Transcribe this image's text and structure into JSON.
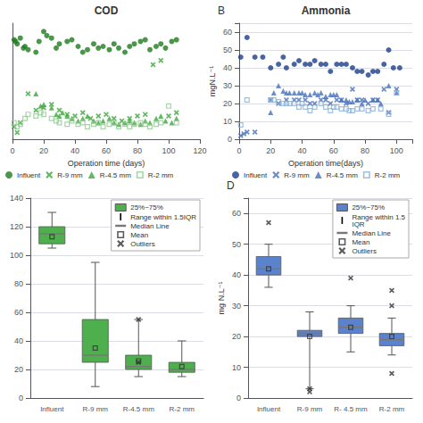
{
  "chart_data": [
    {
      "type": "scatter",
      "title": "COD",
      "xlabel": "Operation time (days)",
      "xlim": [
        0,
        120
      ],
      "xticks": [
        0,
        20,
        40,
        60,
        80,
        100,
        120
      ],
      "ylim": [
        0,
        140
      ],
      "tick_labels": "x",
      "grid": false,
      "legend": "below",
      "series": [
        {
          "name": "Influent",
          "color": "#1e7c1e",
          "marker": "circle",
          "x": [
            1,
            2,
            3,
            5,
            7,
            8,
            10,
            15,
            17,
            20,
            22,
            25,
            28,
            30,
            35,
            38,
            42,
            45,
            48,
            52,
            55,
            58,
            62,
            65,
            68,
            72,
            75,
            78,
            82,
            85,
            88,
            92,
            95,
            98,
            102,
            105
          ],
          "values": [
            120,
            118,
            115,
            122,
            110,
            112,
            108,
            105,
            118,
            130,
            125,
            122,
            110,
            115,
            118,
            120,
            112,
            105,
            108,
            115,
            110,
            112,
            108,
            115,
            110,
            105,
            112,
            115,
            118,
            120,
            108,
            112,
            115,
            110,
            118,
            120
          ]
        },
        {
          "name": "R-9 mm",
          "color": "#3da63d",
          "marker": "x",
          "x": [
            1,
            3,
            5,
            10,
            15,
            20,
            25,
            30,
            35,
            40,
            45,
            50,
            55,
            60,
            65,
            70,
            75,
            80,
            85,
            90,
            95,
            100,
            105
          ],
          "values": [
            15,
            8,
            20,
            55,
            35,
            38,
            42,
            35,
            30,
            28,
            32,
            25,
            28,
            30,
            25,
            22,
            25,
            28,
            30,
            90,
            95,
            28,
            32
          ]
        },
        {
          "name": "R-4.5 mm",
          "color": "#3da63d",
          "marker": "triangle",
          "x": [
            15,
            18,
            20,
            25,
            28,
            30,
            32,
            35,
            38,
            42,
            45,
            48,
            52,
            55,
            58,
            62,
            65,
            68,
            72,
            75,
            78,
            82,
            85,
            88,
            92,
            95,
            98,
            102,
            105
          ],
          "values": [
            55,
            40,
            42,
            38,
            30,
            28,
            32,
            28,
            25,
            22,
            25,
            28,
            22,
            20,
            22,
            25,
            20,
            18,
            20,
            22,
            20,
            18,
            22,
            20,
            25,
            28,
            22,
            20,
            25
          ]
        },
        {
          "name": "R-2 mm",
          "color": "#90cc90",
          "marker": "open_square",
          "x": [
            1,
            3,
            5,
            8,
            10,
            15,
            18,
            20,
            25,
            28,
            30,
            35,
            38,
            42,
            45,
            48,
            52,
            55,
            58,
            62,
            65,
            68,
            72,
            75,
            78,
            82,
            85,
            88,
            92,
            95,
            100,
            105
          ],
          "values": [
            20,
            15,
            18,
            25,
            30,
            28,
            32,
            30,
            25,
            22,
            20,
            18,
            22,
            18,
            20,
            15,
            18,
            20,
            15,
            18,
            20,
            15,
            18,
            15,
            18,
            20,
            18,
            15,
            18,
            20,
            40,
            20
          ]
        }
      ]
    },
    {
      "type": "scatter",
      "title": "Ammonia",
      "xlabel": "Operation time(days)",
      "ylabel": "mgN.L⁻¹",
      "xlim": [
        0,
        110
      ],
      "xticks": [
        0,
        20,
        40,
        60,
        80,
        100
      ],
      "ylim": [
        0,
        65
      ],
      "yticks": [
        0,
        10,
        20,
        30,
        40,
        50,
        60
      ],
      "grid": true,
      "legend": "below",
      "annotations": [
        "B"
      ],
      "series": [
        {
          "name": "Influent",
          "color": "#1c3d8c",
          "marker": "circle",
          "x": [
            1,
            5,
            10,
            15,
            20,
            25,
            28,
            30,
            35,
            38,
            42,
            45,
            48,
            52,
            55,
            58,
            62,
            65,
            68,
            72,
            75,
            78,
            82,
            85,
            88,
            92,
            95,
            98,
            102
          ],
          "values": [
            46,
            57,
            46,
            46,
            40,
            42,
            46,
            40,
            42,
            44,
            42,
            42,
            44,
            42,
            42,
            38,
            42,
            42,
            42,
            40,
            38,
            38,
            36,
            38,
            38,
            42,
            50,
            40,
            40
          ]
        },
        {
          "name": "R-9 mm",
          "color": "#4a70b8",
          "marker": "x",
          "x": [
            1,
            3,
            5,
            10,
            20,
            25,
            30,
            35,
            38,
            42,
            45,
            48,
            52,
            55,
            58,
            62,
            65,
            68,
            72,
            75,
            78,
            82,
            85,
            88,
            92,
            95,
            100
          ],
          "values": [
            2,
            3,
            4,
            4,
            22,
            20,
            22,
            22,
            22,
            22,
            20,
            20,
            22,
            22,
            20,
            22,
            22,
            20,
            28,
            22,
            22,
            20,
            22,
            22,
            28,
            15,
            28
          ]
        },
        {
          "name": "R-4.5 mm",
          "color": "#4a70b8",
          "marker": "triangle",
          "x": [
            20,
            22,
            25,
            28,
            30,
            32,
            35,
            38,
            40,
            42,
            45,
            48,
            50,
            52,
            55,
            58,
            60,
            62,
            65,
            68,
            70,
            72,
            75,
            78,
            80,
            85,
            88,
            90,
            95,
            100
          ],
          "values": [
            15,
            26,
            30,
            27,
            26,
            26,
            26,
            26,
            26,
            25,
            25,
            26,
            25,
            26,
            24,
            25,
            25,
            25,
            22,
            22,
            21,
            21,
            22,
            20,
            22,
            22,
            22,
            20,
            30,
            26
          ]
        },
        {
          "name": "R-2 mm",
          "color": "#8ab0d8",
          "marker": "open_square",
          "x": [
            1,
            5,
            20,
            22,
            25,
            28,
            30,
            32,
            35,
            38,
            40,
            42,
            45,
            48,
            52,
            55,
            58,
            60,
            62,
            65,
            68,
            70,
            72,
            75,
            78,
            82,
            85,
            90,
            95,
            100
          ],
          "values": [
            8,
            22,
            22,
            22,
            21,
            20,
            20,
            20,
            20,
            18,
            20,
            18,
            16,
            18,
            20,
            18,
            16,
            18,
            18,
            17,
            17,
            16,
            16,
            17,
            17,
            16,
            17,
            17,
            14,
            26
          ]
        }
      ]
    },
    {
      "type": "box",
      "categories": [
        "Influent",
        "R-9 mm",
        "R-4.5 mm",
        "R-2 mm"
      ],
      "color": "#4db04d",
      "ylim": [
        0,
        140
      ],
      "yticks": [
        0,
        20,
        40,
        60,
        80,
        100,
        120,
        140
      ],
      "grid": true,
      "legend": "upper right",
      "legend_labels": {
        "box": "25%~75%",
        "whiskers": "Range within 1.5IQR",
        "median": "Median Line",
        "mean": "Mean",
        "outliers": "Outliers"
      },
      "boxes": [
        {
          "q1": 108,
          "median": 115,
          "q3": 120,
          "whisker_low": 105,
          "whisker_high": 130,
          "mean": 113,
          "outliers": []
        },
        {
          "q1": 25,
          "median": 30,
          "q3": 55,
          "whisker_low": 8,
          "whisker_high": 95,
          "mean": 35,
          "outliers": []
        },
        {
          "q1": 20,
          "median": 22,
          "q3": 30,
          "whisker_low": 15,
          "whisker_high": 55,
          "mean": 26,
          "outliers": [
            55,
            25
          ]
        },
        {
          "q1": 18,
          "median": 20,
          "q3": 25,
          "whisker_low": 15,
          "whisker_high": 40,
          "mean": 22,
          "outliers": []
        }
      ]
    },
    {
      "type": "box",
      "categories": [
        "Influent",
        "R-9 mm",
        "R- 4.5 mm",
        "R-2 mm"
      ],
      "color": "#5b82cc",
      "ylabel": "mg N.L⁻¹",
      "ylim": [
        0,
        65
      ],
      "yticks": [
        0,
        10,
        20,
        30,
        40,
        50,
        60
      ],
      "grid": true,
      "legend": "upper right",
      "annotations": [
        "D"
      ],
      "legend_labels": {
        "box": "25%~75%",
        "whiskers": "Range within 1.5\nIQR",
        "median": "Median Line",
        "mean": "Mean",
        "outliers": "Outliers"
      },
      "boxes": [
        {
          "q1": 40,
          "median": 42,
          "q3": 46,
          "whisker_low": 36,
          "whisker_high": 50,
          "mean": 42,
          "outliers": [
            57
          ]
        },
        {
          "q1": 20,
          "median": 21,
          "q3": 22,
          "whisker_low": 3,
          "whisker_high": 28,
          "mean": 20,
          "outliers": [
            2,
            3
          ]
        },
        {
          "q1": 21,
          "median": 23,
          "q3": 26,
          "whisker_low": 15,
          "whisker_high": 30,
          "mean": 23,
          "outliers": [
            39
          ]
        },
        {
          "q1": 17,
          "median": 19,
          "q3": 21,
          "whisker_low": 14,
          "whisker_high": 26,
          "mean": 20,
          "outliers": [
            35,
            30,
            8
          ]
        }
      ]
    }
  ]
}
